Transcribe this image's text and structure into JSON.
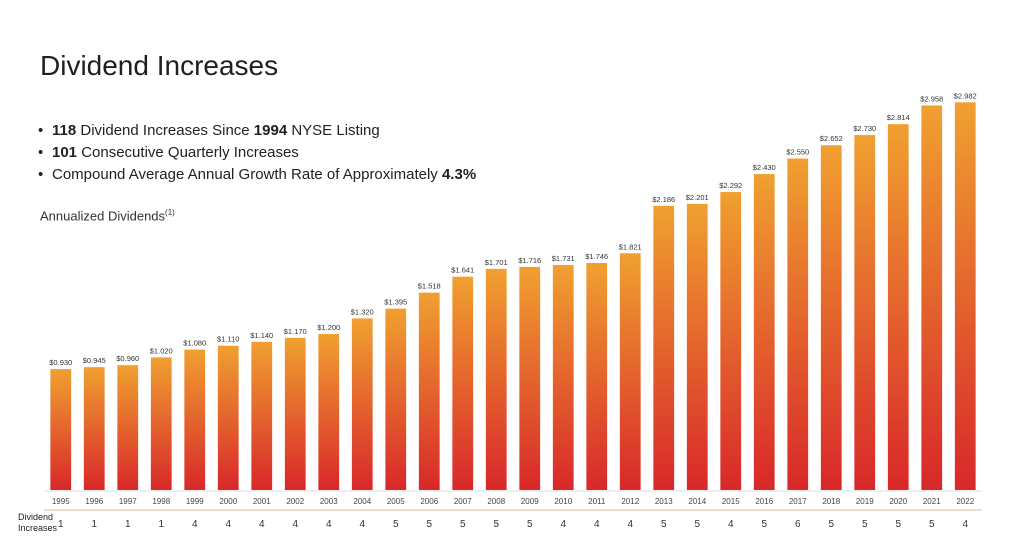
{
  "title": "Dividend Increases",
  "bullets": [
    {
      "bold": "118",
      "text": " Dividend Increases Since ",
      "bold2": "1994",
      "text2": " NYSE Listing"
    },
    {
      "bold": "101",
      "text": " Consecutive Quarterly Increases",
      "bold2": "",
      "text2": ""
    },
    {
      "bold": "",
      "text": "Compound Average Annual Growth Rate of Approximately ",
      "bold2": "4.3%",
      "text2": ""
    }
  ],
  "subtitle": "Annualized Dividends",
  "subtitle_sup": "(1)",
  "row_label_line1": "Dividend",
  "row_label_line2": "Increases",
  "colors": {
    "bar_top": "#f0a030",
    "bar_bottom": "#d8282a",
    "separator": "#e8b888"
  },
  "chart_data": {
    "type": "bar",
    "categories": [
      "1995",
      "1996",
      "1997",
      "1998",
      "1999",
      "2000",
      "2001",
      "2002",
      "2003",
      "2004",
      "2005",
      "2006",
      "2007",
      "2008",
      "2009",
      "2010",
      "2011",
      "2012",
      "2013",
      "2014",
      "2015",
      "2016",
      "2017",
      "2018",
      "2019",
      "2020",
      "2021",
      "2022"
    ],
    "values": [
      0.93,
      0.945,
      0.96,
      1.02,
      1.08,
      1.11,
      1.14,
      1.17,
      1.2,
      1.32,
      1.395,
      1.518,
      1.641,
      1.701,
      1.716,
      1.731,
      1.746,
      1.821,
      2.186,
      2.201,
      2.292,
      2.43,
      2.55,
      2.652,
      2.73,
      2.814,
      2.958,
      2.982
    ],
    "value_labels": [
      "$0.930",
      "$0.945",
      "$0.960",
      "$1.020",
      "$1.080",
      "$1.110",
      "$1.140",
      "$1.170",
      "$1.200",
      "$1.320",
      "$1.395",
      "$1.518",
      "$1.641",
      "$1.701",
      "$1.716",
      "$1.731",
      "$1.746",
      "$1.821",
      "$2.186",
      "$2.201",
      "$2.292",
      "$2.430",
      "$2.550",
      "$2.652",
      "$2.730",
      "$2.814",
      "$2.958",
      "$2.982"
    ],
    "dividend_increases": [
      1,
      1,
      1,
      1,
      4,
      4,
      4,
      4,
      4,
      4,
      5,
      5,
      5,
      5,
      5,
      4,
      4,
      4,
      5,
      5,
      4,
      5,
      6,
      5,
      5,
      5,
      5,
      4
    ],
    "title": "Annualized Dividends",
    "ylim": [
      0,
      3.0
    ],
    "grid": false
  }
}
